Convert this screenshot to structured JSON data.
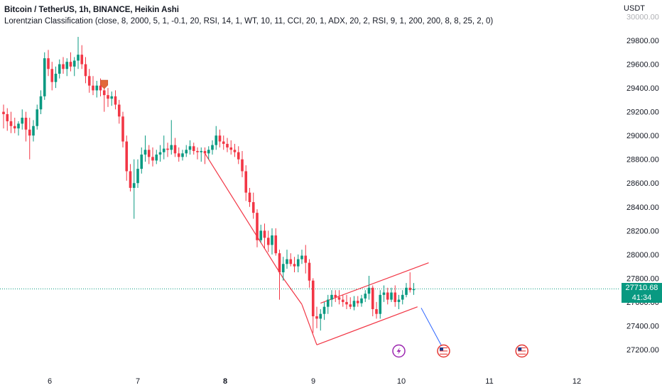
{
  "header": {
    "symbol": "Bitcoin / TetherUS, 1h, BINANCE, Heikin Ashi",
    "indicator": "Lorentzian Classification (close, 8, 2000, 5, 1, -0.1, 20, RSI, 14, 1, WT, 10, 11, CCI, 20, 1, ADX, 20, 2, RSI, 9, 1, 200, 200, 8, 8, 25, 2, 0)"
  },
  "price_axis": {
    "currency": "USDT"
  },
  "last_price": {
    "value": "27710.68",
    "countdown": "41:34"
  },
  "colors": {
    "up": "#089981",
    "down": "#F23645",
    "channel": "#F23645",
    "projection": "#2962FF",
    "last_price_line": "#089981"
  },
  "chart_data": {
    "type": "candlestick",
    "y_ticks": [
      27200,
      27400,
      27600,
      27800,
      28000,
      28200,
      28400,
      28600,
      28800,
      29000,
      29200,
      29400,
      29600,
      29800,
      30000
    ],
    "y_tick_labels": [
      "27200.00",
      "27400.00",
      "27600.00",
      "27800.00",
      "28000.00",
      "28200.00",
      "28400.00",
      "28600.00",
      "28800.00",
      "29000.00",
      "29200.00",
      "29400.00",
      "29600.00",
      "29800.00",
      "30000.00"
    ],
    "ylim": [
      27100,
      30100
    ],
    "x_ticks": [
      "6",
      "7",
      "8",
      "9",
      "10",
      "11",
      "12"
    ],
    "candles": [
      {
        "o": 29200,
        "h": 29260,
        "l": 29060,
        "c": 29180
      },
      {
        "o": 29180,
        "h": 29230,
        "l": 29040,
        "c": 29120
      },
      {
        "o": 29120,
        "h": 29200,
        "l": 29020,
        "c": 29080
      },
      {
        "o": 29080,
        "h": 29150,
        "l": 29020,
        "c": 29060
      },
      {
        "o": 29060,
        "h": 29120,
        "l": 29000,
        "c": 29100
      },
      {
        "o": 29100,
        "h": 29220,
        "l": 29050,
        "c": 29150
      },
      {
        "o": 29150,
        "h": 29200,
        "l": 28950,
        "c": 29050
      },
      {
        "o": 29050,
        "h": 29150,
        "l": 28800,
        "c": 29000
      },
      {
        "o": 29000,
        "h": 29130,
        "l": 28950,
        "c": 29080
      },
      {
        "o": 29080,
        "h": 29260,
        "l": 29050,
        "c": 29220
      },
      {
        "o": 29220,
        "h": 29380,
        "l": 29180,
        "c": 29330
      },
      {
        "o": 29330,
        "h": 29700,
        "l": 29300,
        "c": 29650
      },
      {
        "o": 29650,
        "h": 29720,
        "l": 29500,
        "c": 29560
      },
      {
        "o": 29560,
        "h": 29620,
        "l": 29380,
        "c": 29450
      },
      {
        "o": 29450,
        "h": 29580,
        "l": 29400,
        "c": 29520
      },
      {
        "o": 29520,
        "h": 29640,
        "l": 29480,
        "c": 29600
      },
      {
        "o": 29600,
        "h": 29660,
        "l": 29520,
        "c": 29560
      },
      {
        "o": 29560,
        "h": 29650,
        "l": 29500,
        "c": 29620
      },
      {
        "o": 29620,
        "h": 29700,
        "l": 29540,
        "c": 29580
      },
      {
        "o": 29580,
        "h": 29660,
        "l": 29500,
        "c": 29630
      },
      {
        "o": 29630,
        "h": 29830,
        "l": 29560,
        "c": 29680
      },
      {
        "o": 29680,
        "h": 29760,
        "l": 29560,
        "c": 29600
      },
      {
        "o": 29600,
        "h": 29660,
        "l": 29440,
        "c": 29500
      },
      {
        "o": 29500,
        "h": 29560,
        "l": 29360,
        "c": 29420
      },
      {
        "o": 29420,
        "h": 29500,
        "l": 29340,
        "c": 29380
      },
      {
        "o": 29380,
        "h": 29460,
        "l": 29320,
        "c": 29420
      },
      {
        "o": 29420,
        "h": 29480,
        "l": 29330,
        "c": 29380
      },
      {
        "o": 29380,
        "h": 29440,
        "l": 29200,
        "c": 29340
      },
      {
        "o": 29340,
        "h": 29400,
        "l": 29240,
        "c": 29310
      },
      {
        "o": 29310,
        "h": 29370,
        "l": 29250,
        "c": 29330
      },
      {
        "o": 29330,
        "h": 29380,
        "l": 29220,
        "c": 29260
      },
      {
        "o": 29260,
        "h": 29300,
        "l": 29100,
        "c": 29160
      },
      {
        "o": 29160,
        "h": 29200,
        "l": 28900,
        "c": 28950
      },
      {
        "o": 28950,
        "h": 29000,
        "l": 28620,
        "c": 28700
      },
      {
        "o": 28700,
        "h": 28760,
        "l": 28530,
        "c": 28560
      },
      {
        "o": 28560,
        "h": 28800,
        "l": 28300,
        "c": 28600
      },
      {
        "o": 28600,
        "h": 28800,
        "l": 28560,
        "c": 28720
      },
      {
        "o": 28720,
        "h": 28900,
        "l": 28680,
        "c": 28840
      },
      {
        "o": 28840,
        "h": 29000,
        "l": 28780,
        "c": 28880
      },
      {
        "o": 28880,
        "h": 28920,
        "l": 28760,
        "c": 28820
      },
      {
        "o": 28820,
        "h": 28900,
        "l": 28740,
        "c": 28790
      },
      {
        "o": 28790,
        "h": 28880,
        "l": 28760,
        "c": 28840
      },
      {
        "o": 28840,
        "h": 28920,
        "l": 28780,
        "c": 28860
      },
      {
        "o": 28860,
        "h": 29000,
        "l": 28800,
        "c": 28890
      },
      {
        "o": 28890,
        "h": 28940,
        "l": 28820,
        "c": 28880
      },
      {
        "o": 28880,
        "h": 29130,
        "l": 28840,
        "c": 28920
      },
      {
        "o": 28920,
        "h": 28980,
        "l": 28820,
        "c": 28850
      },
      {
        "o": 28850,
        "h": 28900,
        "l": 28780,
        "c": 28820
      },
      {
        "o": 28820,
        "h": 28880,
        "l": 28790,
        "c": 28850
      },
      {
        "o": 28850,
        "h": 28920,
        "l": 28820,
        "c": 28880
      },
      {
        "o": 28880,
        "h": 28960,
        "l": 28840,
        "c": 28910
      },
      {
        "o": 28910,
        "h": 28940,
        "l": 28840,
        "c": 28870
      },
      {
        "o": 28870,
        "h": 28900,
        "l": 28800,
        "c": 28860
      },
      {
        "o": 28860,
        "h": 28900,
        "l": 28780,
        "c": 28870
      },
      {
        "o": 28870,
        "h": 28900,
        "l": 28760,
        "c": 28850
      },
      {
        "o": 28850,
        "h": 28910,
        "l": 28800,
        "c": 28880
      },
      {
        "o": 28880,
        "h": 28960,
        "l": 28840,
        "c": 28920
      },
      {
        "o": 28920,
        "h": 29080,
        "l": 28880,
        "c": 29000
      },
      {
        "o": 29000,
        "h": 29050,
        "l": 28900,
        "c": 28950
      },
      {
        "o": 28950,
        "h": 29000,
        "l": 28880,
        "c": 28930
      },
      {
        "o": 28930,
        "h": 28980,
        "l": 28860,
        "c": 28900
      },
      {
        "o": 28900,
        "h": 28960,
        "l": 28840,
        "c": 28880
      },
      {
        "o": 28880,
        "h": 28930,
        "l": 28820,
        "c": 28860
      },
      {
        "o": 28860,
        "h": 28910,
        "l": 28760,
        "c": 28800
      },
      {
        "o": 28800,
        "h": 28870,
        "l": 28650,
        "c": 28700
      },
      {
        "o": 28700,
        "h": 28750,
        "l": 28450,
        "c": 28520
      },
      {
        "o": 28520,
        "h": 28560,
        "l": 28400,
        "c": 28440
      },
      {
        "o": 28440,
        "h": 28520,
        "l": 28300,
        "c": 28350
      },
      {
        "o": 28350,
        "h": 28380,
        "l": 28060,
        "c": 28120
      },
      {
        "o": 28120,
        "h": 28250,
        "l": 28100,
        "c": 28200
      },
      {
        "o": 28200,
        "h": 28260,
        "l": 28050,
        "c": 28140
      },
      {
        "o": 28140,
        "h": 28200,
        "l": 28020,
        "c": 28080
      },
      {
        "o": 28080,
        "h": 28220,
        "l": 28000,
        "c": 28160
      },
      {
        "o": 28160,
        "h": 28220,
        "l": 27990,
        "c": 28010
      },
      {
        "o": 28010,
        "h": 28040,
        "l": 27620,
        "c": 27850
      },
      {
        "o": 27850,
        "h": 27980,
        "l": 27780,
        "c": 27920
      },
      {
        "o": 27920,
        "h": 28040,
        "l": 27880,
        "c": 27960
      },
      {
        "o": 27960,
        "h": 28010,
        "l": 27900,
        "c": 27920
      },
      {
        "o": 27920,
        "h": 27980,
        "l": 27850,
        "c": 27900
      },
      {
        "o": 27900,
        "h": 28000,
        "l": 27850,
        "c": 27960
      },
      {
        "o": 27960,
        "h": 28040,
        "l": 27920,
        "c": 27990
      },
      {
        "o": 27990,
        "h": 28080,
        "l": 27840,
        "c": 27930
      },
      {
        "o": 27930,
        "h": 27960,
        "l": 27720,
        "c": 27780
      },
      {
        "o": 27780,
        "h": 27800,
        "l": 27340,
        "c": 27480
      },
      {
        "o": 27480,
        "h": 27560,
        "l": 27380,
        "c": 27460
      },
      {
        "o": 27460,
        "h": 27540,
        "l": 27360,
        "c": 27500
      },
      {
        "o": 27500,
        "h": 27600,
        "l": 27450,
        "c": 27560
      },
      {
        "o": 27560,
        "h": 27660,
        "l": 27500,
        "c": 27620
      },
      {
        "o": 27620,
        "h": 27700,
        "l": 27560,
        "c": 27660
      },
      {
        "o": 27660,
        "h": 27700,
        "l": 27600,
        "c": 27640
      },
      {
        "o": 27640,
        "h": 27700,
        "l": 27580,
        "c": 27620
      },
      {
        "o": 27620,
        "h": 27660,
        "l": 27560,
        "c": 27600
      },
      {
        "o": 27600,
        "h": 27660,
        "l": 27540,
        "c": 27580
      },
      {
        "o": 27580,
        "h": 27640,
        "l": 27540,
        "c": 27560
      },
      {
        "o": 27560,
        "h": 27650,
        "l": 27530,
        "c": 27610
      },
      {
        "o": 27610,
        "h": 27650,
        "l": 27560,
        "c": 27590
      },
      {
        "o": 27590,
        "h": 27660,
        "l": 27560,
        "c": 27630
      },
      {
        "o": 27630,
        "h": 27700,
        "l": 27600,
        "c": 27670
      },
      {
        "o": 27670,
        "h": 27820,
        "l": 27620,
        "c": 27720
      },
      {
        "o": 27720,
        "h": 27740,
        "l": 27480,
        "c": 27540
      },
      {
        "o": 27540,
        "h": 27600,
        "l": 27460,
        "c": 27500
      },
      {
        "o": 27500,
        "h": 27700,
        "l": 27460,
        "c": 27660
      },
      {
        "o": 27660,
        "h": 27740,
        "l": 27600,
        "c": 27680
      },
      {
        "o": 27680,
        "h": 27720,
        "l": 27580,
        "c": 27620
      },
      {
        "o": 27620,
        "h": 27720,
        "l": 27600,
        "c": 27680
      },
      {
        "o": 27680,
        "h": 27740,
        "l": 27560,
        "c": 27600
      },
      {
        "o": 27600,
        "h": 27660,
        "l": 27540,
        "c": 27620
      },
      {
        "o": 27620,
        "h": 27700,
        "l": 27580,
        "c": 27660
      },
      {
        "o": 27660,
        "h": 27760,
        "l": 27640,
        "c": 27720
      },
      {
        "o": 27720,
        "h": 27850,
        "l": 27680,
        "c": 27700
      },
      {
        "o": 27700,
        "h": 27760,
        "l": 27660,
        "c": 27710
      }
    ],
    "signal_marker": {
      "candle": 27,
      "price": 29430
    },
    "channel_lines": [
      {
        "x1": 54,
        "y1": 28850,
        "x2": 75,
        "y2": 27800
      },
      {
        "x1": 75,
        "y1": 27800,
        "x2": 80,
        "y2": 27580
      },
      {
        "x1": 80,
        "y1": 27580,
        "x2": 84,
        "y2": 27240
      },
      {
        "x1": 84,
        "y1": 27240,
        "x2": 111,
        "y2": 27560
      },
      {
        "x1": 85,
        "y1": 27590,
        "x2": 114,
        "y2": 27930
      }
    ],
    "projection_line": {
      "x1": 112,
      "y1": 27550,
      "x2": 118,
      "y2": 27200
    },
    "events": [
      {
        "type": "lightning-event",
        "x": 106,
        "price": 27200
      },
      {
        "type": "us-flag-event",
        "x": 118,
        "price": 27200
      },
      {
        "type": "us-flag-event",
        "x": 139,
        "price": 27200
      }
    ]
  }
}
